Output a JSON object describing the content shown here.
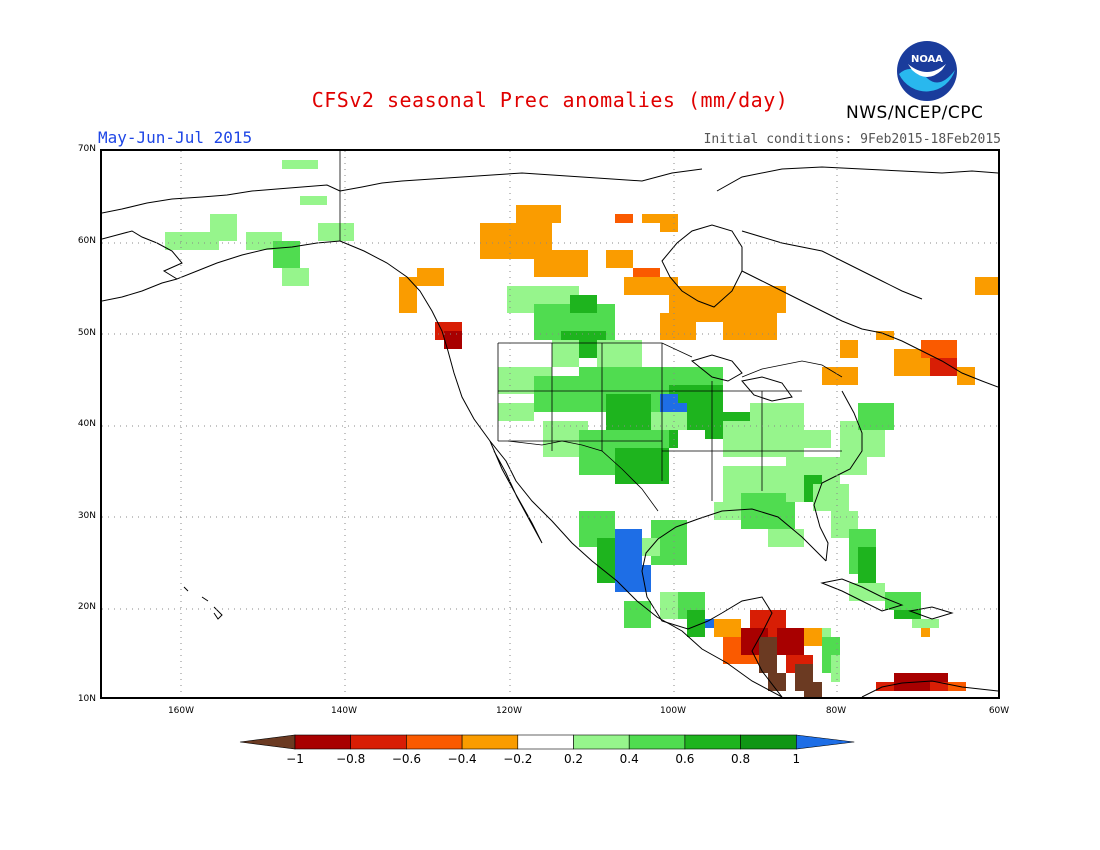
{
  "header": {
    "title": "CFSv2 seasonal Prec anomalies (mm/day)",
    "period": "May-Jun-Jul 2015",
    "initial_conditions": "Initial conditions: 9Feb2015-18Feb2015",
    "agency": "NWS/NCEP/CPC",
    "logo_text": "NOAA"
  },
  "map": {
    "lat_labels": [
      "70N",
      "60N",
      "50N",
      "40N",
      "30N",
      "20N",
      "10N"
    ],
    "lon_labels": [
      "160W",
      "140W",
      "120W",
      "100W",
      "80W",
      "60W"
    ]
  },
  "legend": {
    "tick_labels": [
      "-1",
      "-0.8",
      "-0.6",
      "-0.4",
      "-0.2",
      "0.2",
      "0.4",
      "0.6",
      "0.8",
      "1"
    ],
    "colors": [
      "#6b3a22",
      "#a80000",
      "#d81e05",
      "#fa5a00",
      "#fa9c00",
      "#ffffff",
      "#96f58c",
      "#50dc50",
      "#1eb41e",
      "#0f9614",
      "#1e6ee6"
    ]
  }
}
